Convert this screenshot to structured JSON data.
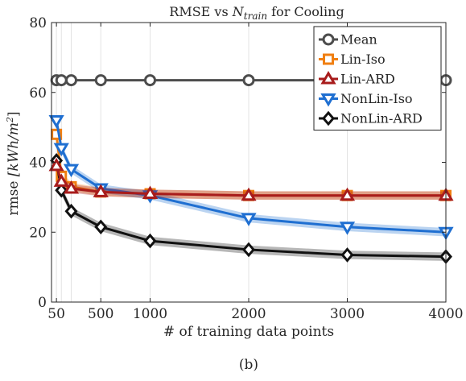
{
  "chart_data": {
    "type": "line",
    "title_prefix": "RMSE vs ",
    "title_var": "N",
    "title_sub": "train",
    "title_suffix": " for Cooling",
    "xlabel": "# of training data points",
    "ylabel_prefix": "rmse ",
    "ylabel_unit": "[kWh/m",
    "ylabel_sup": "2",
    "ylabel_close": "]",
    "caption": "(b)",
    "xlim": [
      0,
      4000
    ],
    "ylim": [
      0,
      80
    ],
    "x_ticks": [
      50,
      500,
      1000,
      2000,
      3000,
      4000
    ],
    "x_tick_labels": [
      "50",
      "500",
      "1000",
      "2000",
      "3000",
      "4000"
    ],
    "y_ticks": [
      0,
      20,
      40,
      60,
      80
    ],
    "y_tick_labels": [
      "0",
      "20",
      "40",
      "60",
      "80"
    ],
    "grid": "vertical",
    "legend_position": "top-right",
    "series": [
      {
        "name": "Mean",
        "color": "#4d4d4d",
        "marker": "circle",
        "x": [
          50,
          100,
          200,
          500,
          1000,
          2000,
          3000,
          4000
        ],
        "y": [
          63.5,
          63.5,
          63.5,
          63.5,
          63.5,
          63.5,
          63.5,
          63.5
        ]
      },
      {
        "name": "Lin-Iso",
        "color": "#f07f12",
        "marker": "square",
        "x": [
          50,
          100,
          200,
          500,
          1000,
          2000,
          3000,
          4000
        ],
        "y": [
          48,
          36,
          33,
          31.5,
          31,
          30.5,
          30.5,
          30.5
        ]
      },
      {
        "name": "Lin-ARD",
        "color": "#a81c1c",
        "marker": "triangle-up",
        "x": [
          50,
          100,
          200,
          500,
          1000,
          2000,
          3000,
          4000
        ],
        "y": [
          39,
          34.5,
          32.5,
          31.5,
          31,
          30.5,
          30.5,
          30.5
        ]
      },
      {
        "name": "NonLin-Iso",
        "color": "#1f6fd1",
        "marker": "triangle-down",
        "x": [
          50,
          100,
          200,
          500,
          1000,
          2000,
          3000,
          4000
        ],
        "y": [
          52,
          44,
          38,
          32.5,
          30.5,
          24,
          21.5,
          20
        ]
      },
      {
        "name": "NonLin-ARD",
        "color": "#111111",
        "marker": "diamond",
        "x": [
          50,
          100,
          200,
          500,
          1000,
          2000,
          3000,
          4000
        ],
        "y": [
          40.5,
          32,
          26,
          21.5,
          17.5,
          15,
          13.5,
          13
        ]
      }
    ]
  }
}
